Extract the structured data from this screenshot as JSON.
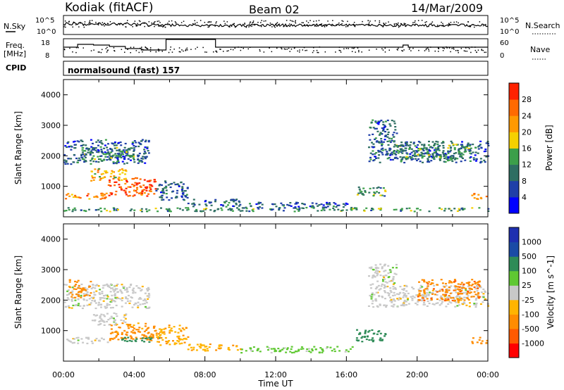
{
  "header": {
    "station": "Kodiak (fitACF)",
    "beam": "Beam 02",
    "date": "14/Mar/2009"
  },
  "summary_panel": {
    "nsky_label": "N.Sky",
    "nsearch_label": "N.Search",
    "noise_ticks": [
      "10^5",
      "10^0"
    ],
    "noise_ticks_right": [
      "10^5",
      "10^0"
    ],
    "freq_label_1": "Freq.",
    "freq_label_2": "[MHz]",
    "freq_ticks": [
      "18",
      "8"
    ],
    "nave_label": "Nave",
    "nave_ticks": [
      "60",
      "0"
    ],
    "cpid_label": "CPID",
    "cpid_text": "normalsound (fast) 157"
  },
  "colors": {
    "power_scale": [
      "#0000ff",
      "#1f3fa8",
      "#2e6e62",
      "#3c9f4a",
      "#f5d000",
      "#ff9900",
      "#ff6a00",
      "#ff2200"
    ],
    "velocity_scale": [
      "#ff0000",
      "#ff5a00",
      "#ff8c00",
      "#ffb400",
      "#c8c8c8",
      "#5fc832",
      "#2e8b57",
      "#1a4ba6",
      "#1f2fb0"
    ]
  },
  "chart_data": [
    {
      "type": "heatmap",
      "panel": "power",
      "xlabel": "",
      "ylabel": "Slant Range [km]",
      "xlim": [
        0,
        24
      ],
      "ylim": [
        0,
        4500
      ],
      "yticks": [
        1000,
        2000,
        3000,
        4000
      ],
      "colorbar_label": "Power [dB]",
      "colorbar_ticks": [
        "4",
        "8",
        "12",
        "16",
        "20",
        "24",
        "28"
      ],
      "regions": [
        {
          "x0": 0.0,
          "x1": 4.8,
          "y0": 1750,
          "y1": 2550,
          "v": 8
        },
        {
          "x0": 1.0,
          "x1": 4.0,
          "y0": 1900,
          "y1": 2300,
          "v": 12
        },
        {
          "x0": 0.0,
          "x1": 2.5,
          "y0": 600,
          "y1": 800,
          "v": 24
        },
        {
          "x0": 2.5,
          "x1": 5.2,
          "y0": 700,
          "y1": 1300,
          "v": 28
        },
        {
          "x0": 1.5,
          "x1": 3.5,
          "y0": 1200,
          "y1": 1600,
          "v": 20
        },
        {
          "x0": 5.2,
          "x1": 7.0,
          "y0": 550,
          "y1": 1200,
          "v": 8
        },
        {
          "x0": 7.0,
          "x1": 10.0,
          "y0": 350,
          "y1": 600,
          "v": 8
        },
        {
          "x0": 10.0,
          "x1": 16.5,
          "y0": 300,
          "y1": 500,
          "v": 8
        },
        {
          "x0": 16.5,
          "x1": 18.2,
          "y0": 700,
          "y1": 1000,
          "v": 12
        },
        {
          "x0": 17.2,
          "x1": 24.0,
          "y0": 1800,
          "y1": 2500,
          "v": 8
        },
        {
          "x0": 18.5,
          "x1": 23.0,
          "y0": 1900,
          "y1": 2400,
          "v": 12
        },
        {
          "x0": 17.2,
          "x1": 18.8,
          "y0": 2500,
          "y1": 3200,
          "v": 8
        },
        {
          "x0": 23.0,
          "x1": 24.0,
          "y0": 600,
          "y1": 800,
          "v": 24
        },
        {
          "x0": 0.0,
          "x1": 24.0,
          "y0": 200,
          "y1": 320,
          "v": 12
        }
      ]
    },
    {
      "type": "heatmap",
      "panel": "velocity",
      "xlabel": "Time UT",
      "ylabel": "Slant Range [km]",
      "xlim": [
        0,
        24
      ],
      "ylim": [
        0,
        4500
      ],
      "yticks": [
        1000,
        2000,
        3000,
        4000
      ],
      "xticks": [
        "00:00",
        "04:00",
        "08:00",
        "12:00",
        "16:00",
        "20:00",
        "00:00"
      ],
      "colorbar_label": "Velocity [m s^-1]",
      "colorbar_ticks": [
        "-1000",
        "-500",
        "-100",
        "-25",
        "25",
        "100",
        "500",
        "1000"
      ],
      "regions": [
        {
          "x0": 0.0,
          "x1": 4.8,
          "y0": 1750,
          "y1": 2550,
          "v": 0
        },
        {
          "x0": 0.3,
          "x1": 1.5,
          "y0": 2100,
          "y1": 2700,
          "v": -300
        },
        {
          "x0": 0.0,
          "x1": 2.5,
          "y0": 600,
          "y1": 800,
          "v": 0
        },
        {
          "x0": 2.5,
          "x1": 5.2,
          "y0": 700,
          "y1": 1300,
          "v": -150
        },
        {
          "x0": 1.5,
          "x1": 3.5,
          "y0": 1200,
          "y1": 1600,
          "v": 0
        },
        {
          "x0": 3.2,
          "x1": 5.5,
          "y0": 650,
          "y1": 800,
          "v": 200
        },
        {
          "x0": 5.2,
          "x1": 7.0,
          "y0": 550,
          "y1": 1200,
          "v": -80
        },
        {
          "x0": 7.0,
          "x1": 10.0,
          "y0": 350,
          "y1": 600,
          "v": -80
        },
        {
          "x0": 10.0,
          "x1": 16.5,
          "y0": 300,
          "y1": 500,
          "v": 50
        },
        {
          "x0": 16.5,
          "x1": 18.2,
          "y0": 650,
          "y1": 1050,
          "v": 200
        },
        {
          "x0": 17.2,
          "x1": 24.0,
          "y0": 1800,
          "y1": 2500,
          "v": 0
        },
        {
          "x0": 20.0,
          "x1": 23.5,
          "y0": 2000,
          "y1": 2700,
          "v": -400
        },
        {
          "x0": 17.2,
          "x1": 18.8,
          "y0": 2500,
          "y1": 3200,
          "v": 0
        },
        {
          "x0": 23.0,
          "x1": 24.0,
          "y0": 600,
          "y1": 800,
          "v": -200
        }
      ]
    }
  ]
}
